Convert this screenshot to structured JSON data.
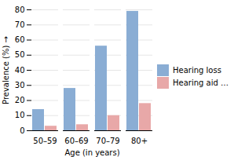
{
  "chart_data": {
    "type": "bar",
    "categories": [
      "50–59",
      "60–69",
      "70–79",
      "80+"
    ],
    "series": [
      {
        "name": "Hearing loss",
        "color": "#8aadd4",
        "values": [
          14,
          28,
          56,
          79
        ]
      },
      {
        "name": "Hearing aid use",
        "color": "#e8a8a8",
        "values": [
          3,
          4,
          10,
          18
        ]
      }
    ],
    "xlabel": "Age (in years)",
    "ylabel": "Prevalence (%)",
    "ylim": [
      0,
      80
    ],
    "yticks": [
      0,
      10,
      20,
      30,
      40,
      50,
      60,
      70,
      80
    ],
    "grid": true,
    "legend": "right"
  }
}
